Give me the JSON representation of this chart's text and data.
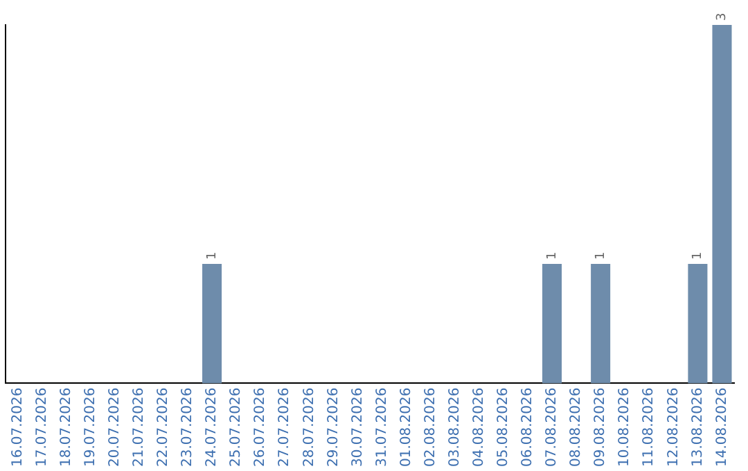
{
  "chart_data": {
    "type": "bar",
    "categories": [
      "16.07.2026",
      "17.07.2026",
      "18.07.2026",
      "19.07.2026",
      "20.07.2026",
      "21.07.2026",
      "22.07.2026",
      "23.07.2026",
      "24.07.2026",
      "25.07.2026",
      "26.07.2026",
      "27.07.2026",
      "28.07.2026",
      "29.07.2026",
      "30.07.2026",
      "31.07.2026",
      "01.08.2026",
      "02.08.2026",
      "03.08.2026",
      "04.08.2026",
      "05.08.2026",
      "06.08.2026",
      "07.08.2026",
      "08.08.2026",
      "09.08.2026",
      "10.08.2026",
      "11.08.2026",
      "12.08.2026",
      "13.08.2026",
      "14.08.2026"
    ],
    "values": [
      0,
      0,
      0,
      0,
      0,
      0,
      0,
      0,
      1,
      0,
      0,
      0,
      0,
      0,
      0,
      0,
      0,
      0,
      0,
      0,
      0,
      0,
      1,
      0,
      1,
      0,
      0,
      0,
      1,
      3
    ],
    "value_labels": [
      null,
      null,
      null,
      null,
      null,
      null,
      null,
      null,
      "1",
      null,
      null,
      null,
      null,
      null,
      null,
      null,
      null,
      null,
      null,
      null,
      null,
      null,
      "1",
      null,
      "1",
      null,
      null,
      null,
      "1",
      "3"
    ],
    "color": "#6e8cab",
    "grid": false,
    "legend": false,
    "tick_labels": "x"
  }
}
